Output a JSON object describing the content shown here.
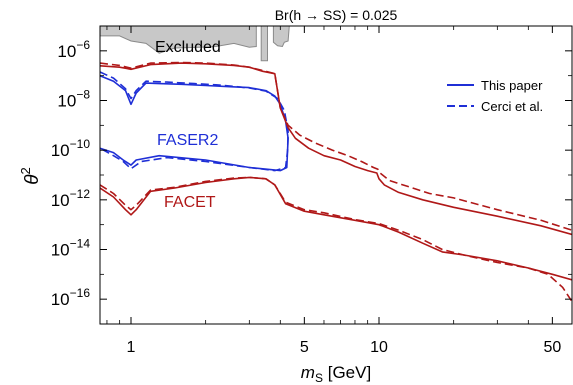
{
  "chart_data": {
    "type": "line",
    "title": "Br(h → SS) = 0.025",
    "xlabel_symbol": "m",
    "xlabel_sub": "S",
    "xlabel_unit": "[GeV]",
    "ylabel_symbol": "θ",
    "ylabel_sup": "2",
    "x_scale": "log",
    "y_scale": "log",
    "xlim": [
      0.75,
      60
    ],
    "ylim": [
      1e-17,
      1e-05
    ],
    "x_ticks": [
      {
        "value": 1,
        "label": "1"
      },
      {
        "value": 5,
        "label": "5"
      },
      {
        "value": 10,
        "label": "10"
      },
      {
        "value": 50,
        "label": "50"
      }
    ],
    "y_ticks": [
      {
        "value": 1e-06,
        "base": "10",
        "exp": "−6"
      },
      {
        "value": 1e-08,
        "base": "10",
        "exp": "−8"
      },
      {
        "value": 1e-10,
        "base": "10",
        "exp": "−10"
      },
      {
        "value": 1e-12,
        "base": "10",
        "exp": "−12"
      },
      {
        "value": 1e-14,
        "base": "10",
        "exp": "−14"
      },
      {
        "value": 1e-16,
        "base": "10",
        "exp": "−16"
      }
    ],
    "legend": {
      "placement": "top-right",
      "entries": [
        {
          "label": "This paper",
          "style": "solid"
        },
        {
          "label": "Cerci et al.",
          "style": "dashed"
        }
      ]
    },
    "annotations": {
      "excluded": "Excluded",
      "faser2": "FASER2",
      "facet": "FACET"
    },
    "colors": {
      "faser2": "#1f2fd6",
      "facet": "#b01818",
      "excluded_fill": "#c8c8c8",
      "excluded_edge": "#8a8a8a"
    },
    "excluded_region": {
      "main": [
        [
          0.75,
          1e-05
        ],
        [
          3.2,
          1e-05
        ],
        [
          3.2,
          1.5e-06
        ],
        [
          3.0,
          1.4e-06
        ],
        [
          2.6,
          2e-06
        ],
        [
          2.2,
          1.5e-06
        ],
        [
          1.9,
          1.4e-06
        ],
        [
          1.5,
          1.3e-06
        ],
        [
          1.3,
          8e-07
        ],
        [
          1.15,
          2e-06
        ],
        [
          1.0,
          2.5e-06
        ],
        [
          0.9,
          4e-06
        ],
        [
          0.75,
          4e-06
        ]
      ],
      "spike": [
        [
          3.35,
          1e-05
        ],
        [
          3.55,
          1e-05
        ],
        [
          3.55,
          4e-07
        ],
        [
          3.35,
          4e-07
        ]
      ],
      "right": [
        [
          3.75,
          1e-05
        ],
        [
          4.35,
          1e-05
        ],
        [
          4.3,
          2.5e-06
        ],
        [
          4.15,
          2.2e-06
        ],
        [
          4.08,
          1.5e-06
        ],
        [
          3.9,
          1.6e-06
        ],
        [
          3.75,
          2.2e-06
        ]
      ]
    },
    "series": [
      {
        "name": "FASER2",
        "group": "faser2",
        "style": "solid",
        "points": [
          [
            0.75,
            1e-07
          ],
          [
            0.85,
            6e-08
          ],
          [
            0.95,
            2.5e-08
          ],
          [
            1.0,
            7e-09
          ],
          [
            1.05,
            2e-08
          ],
          [
            1.15,
            5e-08
          ],
          [
            1.3,
            4.8e-08
          ],
          [
            1.6,
            4.5e-08
          ],
          [
            2.0,
            4e-08
          ],
          [
            2.5,
            3.6e-08
          ],
          [
            3.0,
            3.3e-08
          ],
          [
            3.5,
            2.5e-08
          ],
          [
            3.8,
            1.5e-08
          ],
          [
            4.0,
            7e-09
          ],
          [
            4.2,
            1.5e-09
          ],
          [
            4.3,
            3e-10
          ],
          [
            4.25,
            2e-11
          ],
          [
            4.0,
            1.5e-11
          ],
          [
            3.0,
            2e-11
          ],
          [
            2.0,
            4e-11
          ],
          [
            1.3,
            6e-11
          ],
          [
            1.05,
            4e-11
          ],
          [
            1.0,
            2.5e-11
          ],
          [
            0.93,
            4e-11
          ],
          [
            0.85,
            8e-11
          ],
          [
            0.75,
            1.2e-10
          ]
        ]
      },
      {
        "name": "FASER2 (Cerci et al.)",
        "group": "faser2",
        "style": "dashed",
        "points": [
          [
            0.75,
            1.4e-07
          ],
          [
            0.85,
            8e-08
          ],
          [
            0.95,
            3e-08
          ],
          [
            1.0,
            1.2e-08
          ],
          [
            1.05,
            2.5e-08
          ],
          [
            1.15,
            6e-08
          ],
          [
            1.4,
            5.5e-08
          ],
          [
            1.8,
            4.8e-08
          ],
          [
            2.2,
            4.3e-08
          ],
          [
            2.6,
            3.7e-08
          ],
          [
            3.0,
            3.2e-08
          ],
          [
            3.5,
            2.4e-08
          ],
          [
            3.9,
            1.2e-08
          ],
          [
            4.15,
            4e-09
          ],
          [
            4.3,
            6e-10
          ],
          [
            4.28,
            1e-10
          ],
          [
            4.2,
            2e-11
          ],
          [
            3.8,
            1.5e-11
          ],
          [
            3.0,
            2e-11
          ],
          [
            2.0,
            3.5e-11
          ],
          [
            1.4,
            5e-11
          ],
          [
            1.1,
            3.5e-11
          ],
          [
            1.0,
            1.8e-11
          ],
          [
            0.93,
            3.5e-11
          ],
          [
            0.85,
            6e-11
          ],
          [
            0.75,
            1.2e-10
          ]
        ]
      },
      {
        "name": "FACET upper",
        "group": "facet",
        "style": "solid",
        "points": [
          [
            0.75,
            2.5e-07
          ],
          [
            0.9,
            2.2e-07
          ],
          [
            1.0,
            1.8e-07
          ],
          [
            1.2,
            2.8e-07
          ],
          [
            1.6,
            3.2e-07
          ],
          [
            2.0,
            3e-07
          ],
          [
            2.6,
            2.6e-07
          ],
          [
            3.0,
            2.2e-07
          ],
          [
            3.4,
            1.5e-07
          ],
          [
            3.8,
            1.2e-07
          ],
          [
            4.0,
            5e-09
          ],
          [
            4.3,
            8e-10
          ],
          [
            4.6,
            3e-10
          ],
          [
            5.2,
            1.2e-10
          ],
          [
            6.0,
            6e-11
          ],
          [
            7.0,
            4e-11
          ],
          [
            8.0,
            2.2e-11
          ],
          [
            9.0,
            1.5e-11
          ],
          [
            9.8,
            1.2e-11
          ],
          [
            10.0,
            7e-12
          ],
          [
            10.5,
            4e-12
          ],
          [
            12.0,
            2e-12
          ],
          [
            15.0,
            1e-12
          ],
          [
            20.0,
            5e-13
          ],
          [
            30.0,
            2.2e-13
          ],
          [
            45.0,
            9e-14
          ],
          [
            60.0,
            4e-14
          ]
        ]
      },
      {
        "name": "FACET upper (Cerci et al.)",
        "group": "facet",
        "style": "dashed",
        "points": [
          [
            0.75,
            3.2e-07
          ],
          [
            0.9,
            2.6e-07
          ],
          [
            1.0,
            2e-07
          ],
          [
            1.2,
            3.2e-07
          ],
          [
            1.6,
            3.4e-07
          ],
          [
            2.0,
            3.2e-07
          ],
          [
            2.6,
            2.7e-07
          ],
          [
            3.0,
            2.2e-07
          ],
          [
            3.4,
            1.6e-07
          ],
          [
            3.8,
            1.2e-07
          ],
          [
            4.0,
            5e-09
          ],
          [
            4.3,
            1e-09
          ],
          [
            4.8,
            4e-10
          ],
          [
            5.5,
            2e-10
          ],
          [
            6.5,
            1e-10
          ],
          [
            7.5,
            6e-11
          ],
          [
            8.5,
            3.5e-11
          ],
          [
            9.5,
            2e-11
          ],
          [
            9.9,
            1.7e-11
          ],
          [
            10.1,
            1.2e-11
          ],
          [
            11.0,
            6e-12
          ],
          [
            13.0,
            3.5e-12
          ],
          [
            16.0,
            1.8e-12
          ],
          [
            20.0,
            1.2e-12
          ],
          [
            30.0,
            4e-13
          ],
          [
            45.0,
            1.5e-13
          ],
          [
            60.0,
            6e-14
          ]
        ]
      },
      {
        "name": "FACET lower",
        "group": "facet",
        "style": "solid",
        "points": [
          [
            0.75,
            3e-12
          ],
          [
            0.85,
            1.3e-12
          ],
          [
            0.95,
            4e-13
          ],
          [
            1.0,
            2.5e-13
          ],
          [
            1.05,
            4e-13
          ],
          [
            1.2,
            2.2e-12
          ],
          [
            1.5,
            3e-12
          ],
          [
            2.0,
            5e-12
          ],
          [
            2.6,
            7e-12
          ],
          [
            3.0,
            8e-12
          ],
          [
            3.5,
            7e-12
          ],
          [
            3.8,
            4e-12
          ],
          [
            4.2,
            7e-13
          ],
          [
            5.0,
            3.5e-13
          ],
          [
            6.0,
            2.5e-13
          ],
          [
            8.0,
            1.5e-13
          ],
          [
            10.0,
            1e-13
          ],
          [
            12.0,
            5e-14
          ],
          [
            15.0,
            1.8e-14
          ],
          [
            18.0,
            8e-15
          ],
          [
            22.0,
            6e-15
          ],
          [
            30.0,
            3.5e-15
          ],
          [
            40.0,
            1.8e-15
          ],
          [
            50.0,
            1e-15
          ],
          [
            60.0,
            6e-16
          ]
        ]
      },
      {
        "name": "FACET lower (Cerci et al.)",
        "group": "facet",
        "style": "dashed",
        "points": [
          [
            0.75,
            4e-12
          ],
          [
            0.85,
            1.8e-12
          ],
          [
            0.95,
            6e-13
          ],
          [
            1.0,
            4e-13
          ],
          [
            1.05,
            6e-13
          ],
          [
            1.2,
            2.5e-12
          ],
          [
            1.5,
            3.2e-12
          ],
          [
            2.0,
            5.5e-12
          ],
          [
            2.6,
            7.5e-12
          ],
          [
            3.0,
            8e-12
          ],
          [
            3.5,
            7e-12
          ],
          [
            3.8,
            4e-12
          ],
          [
            4.2,
            8e-13
          ],
          [
            5.0,
            4e-13
          ],
          [
            6.0,
            3e-13
          ],
          [
            8.0,
            1.6e-13
          ],
          [
            10.0,
            1.1e-13
          ],
          [
            12.0,
            6e-14
          ],
          [
            15.0,
            2.5e-14
          ],
          [
            18.0,
            1e-14
          ],
          [
            22.0,
            6e-15
          ],
          [
            30.0,
            3e-15
          ],
          [
            40.0,
            1.8e-15
          ],
          [
            48.0,
            1e-15
          ],
          [
            55.0,
            3e-16
          ],
          [
            60.0,
            8e-17
          ]
        ]
      }
    ]
  }
}
